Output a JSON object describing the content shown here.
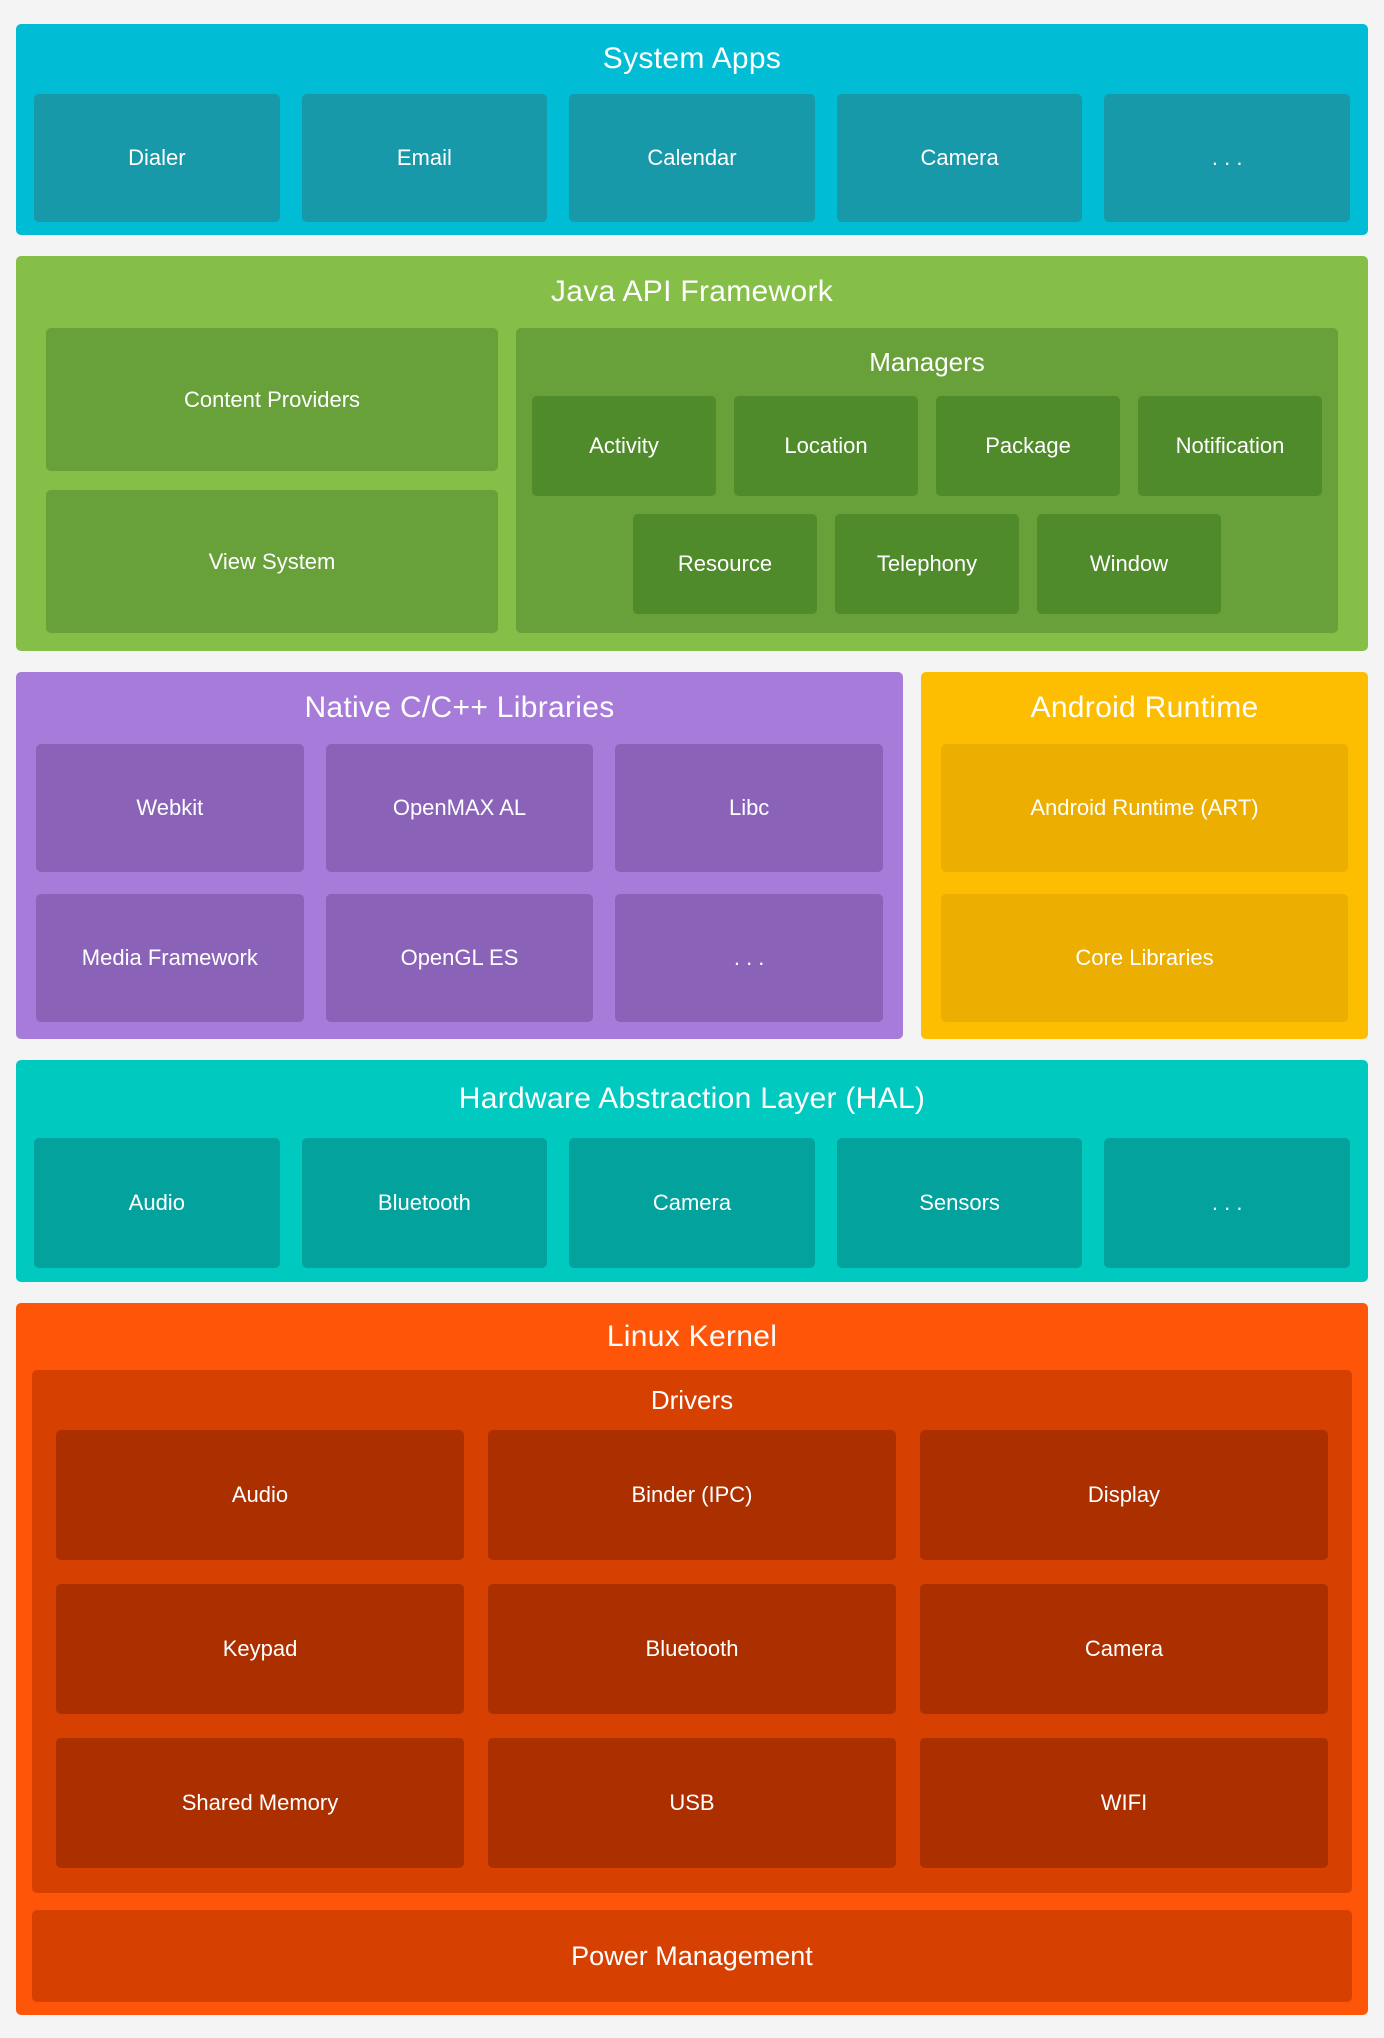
{
  "colors": {
    "background": "#f4f4f4",
    "text": "#ffffff",
    "system_apps": {
      "outer": "#00bcd4",
      "inner": "#1899a9"
    },
    "java_api": {
      "outer": "#85bf47",
      "mid": "#68a039",
      "dark": "#4f8a2b"
    },
    "native_libs": {
      "outer": "#a77bda",
      "inner": "#8a63b8"
    },
    "android_runtime": {
      "outer": "#fdbd00",
      "inner": "#ecae00"
    },
    "hal": {
      "outer": "#00c9c0",
      "inner": "#04a29c"
    },
    "linux_kernel": {
      "outer": "#ff5508",
      "container": "#d64000",
      "item": "#ac2f00"
    }
  },
  "sections": {
    "system_apps": {
      "title": "System Apps",
      "items": [
        "Dialer",
        "Email",
        "Calendar",
        "Camera",
        ". . ."
      ]
    },
    "java_api": {
      "title": "Java API Framework",
      "left_items": [
        "Content Providers",
        "View System"
      ],
      "managers": {
        "title": "Managers",
        "row1": [
          "Activity",
          "Location",
          "Package",
          "Notification"
        ],
        "row2": [
          "Resource",
          "Telephony",
          "Window"
        ]
      }
    },
    "native_libs": {
      "title": "Native C/C++ Libraries",
      "row1": [
        "Webkit",
        "OpenMAX AL",
        "Libc"
      ],
      "row2": [
        "Media Framework",
        "OpenGL ES",
        ". . ."
      ]
    },
    "android_runtime": {
      "title": "Android Runtime",
      "items": [
        "Android Runtime (ART)",
        "Core Libraries"
      ]
    },
    "hal": {
      "title": "Hardware Abstraction Layer (HAL)",
      "items": [
        "Audio",
        "Bluetooth",
        "Camera",
        "Sensors",
        ". . ."
      ]
    },
    "linux_kernel": {
      "title": "Linux Kernel",
      "drivers": {
        "title": "Drivers",
        "rows": [
          [
            "Audio",
            "Binder (IPC)",
            "Display"
          ],
          [
            "Keypad",
            "Bluetooth",
            "Camera"
          ],
          [
            "Shared Memory",
            "USB",
            "WIFI"
          ]
        ]
      },
      "power_label": "Power Management"
    }
  }
}
